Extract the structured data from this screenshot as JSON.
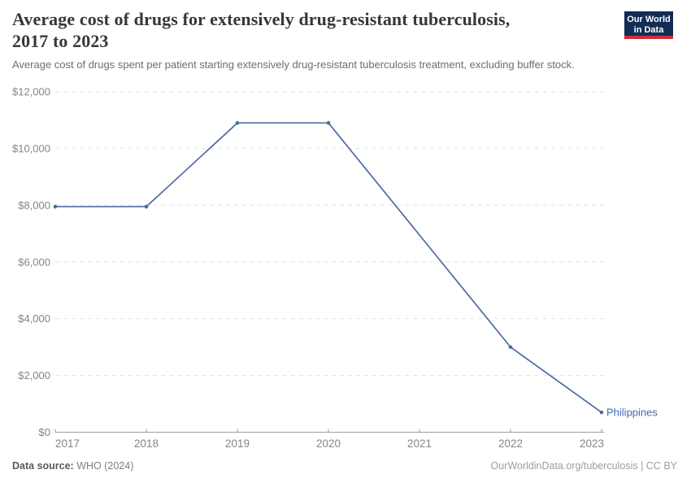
{
  "header": {
    "title_line1": "Average cost of drugs for extensively drug-resistant tuberculosis,",
    "title_line2": "2017 to 2023",
    "subtitle": "Average cost of drugs spent per patient starting extensively drug-resistant tuberculosis treatment, excluding buffer stock.",
    "logo": {
      "line1": "Our World",
      "line2": "in Data",
      "bg_color": "#132c54",
      "bar_color": "#ce2e36"
    }
  },
  "chart_data": {
    "type": "line",
    "title": "Average cost of drugs for extensively drug-resistant tuberculosis, 2017 to 2023",
    "xlabel": "",
    "ylabel": "",
    "xlim": [
      2017,
      2023
    ],
    "ylim": [
      0,
      12000
    ],
    "grid": "horizontal-dashed",
    "legend_position": "end-of-line-label",
    "x_ticks": [
      2017,
      2018,
      2019,
      2020,
      2021,
      2022,
      2023
    ],
    "y_ticks": [
      {
        "value": 0,
        "label": "$0"
      },
      {
        "value": 2000,
        "label": "$2,000"
      },
      {
        "value": 4000,
        "label": "$4,000"
      },
      {
        "value": 6000,
        "label": "$6,000"
      },
      {
        "value": 8000,
        "label": "$8,000"
      },
      {
        "value": 10000,
        "label": "$10,000"
      },
      {
        "value": 12000,
        "label": "$12,000"
      }
    ],
    "series": [
      {
        "name": "Philippines",
        "color": "#4c6aa0",
        "label_color": "#3d6cb4",
        "points": [
          {
            "x": 2017,
            "y": 7950
          },
          {
            "x": 2018,
            "y": 7950
          },
          {
            "x": 2019,
            "y": 10900
          },
          {
            "x": 2020,
            "y": 10900
          },
          {
            "x": 2022,
            "y": 3000
          },
          {
            "x": 2023,
            "y": 700
          }
        ]
      }
    ],
    "colors": {
      "gridline": "#e2e2e2",
      "axis": "#9e9e9e",
      "tick_label": "#858585"
    }
  },
  "footer": {
    "data_source_label": "Data source:",
    "data_source_value": "WHO (2024)",
    "attribution": "OurWorldinData.org/tuberculosis | CC BY"
  }
}
